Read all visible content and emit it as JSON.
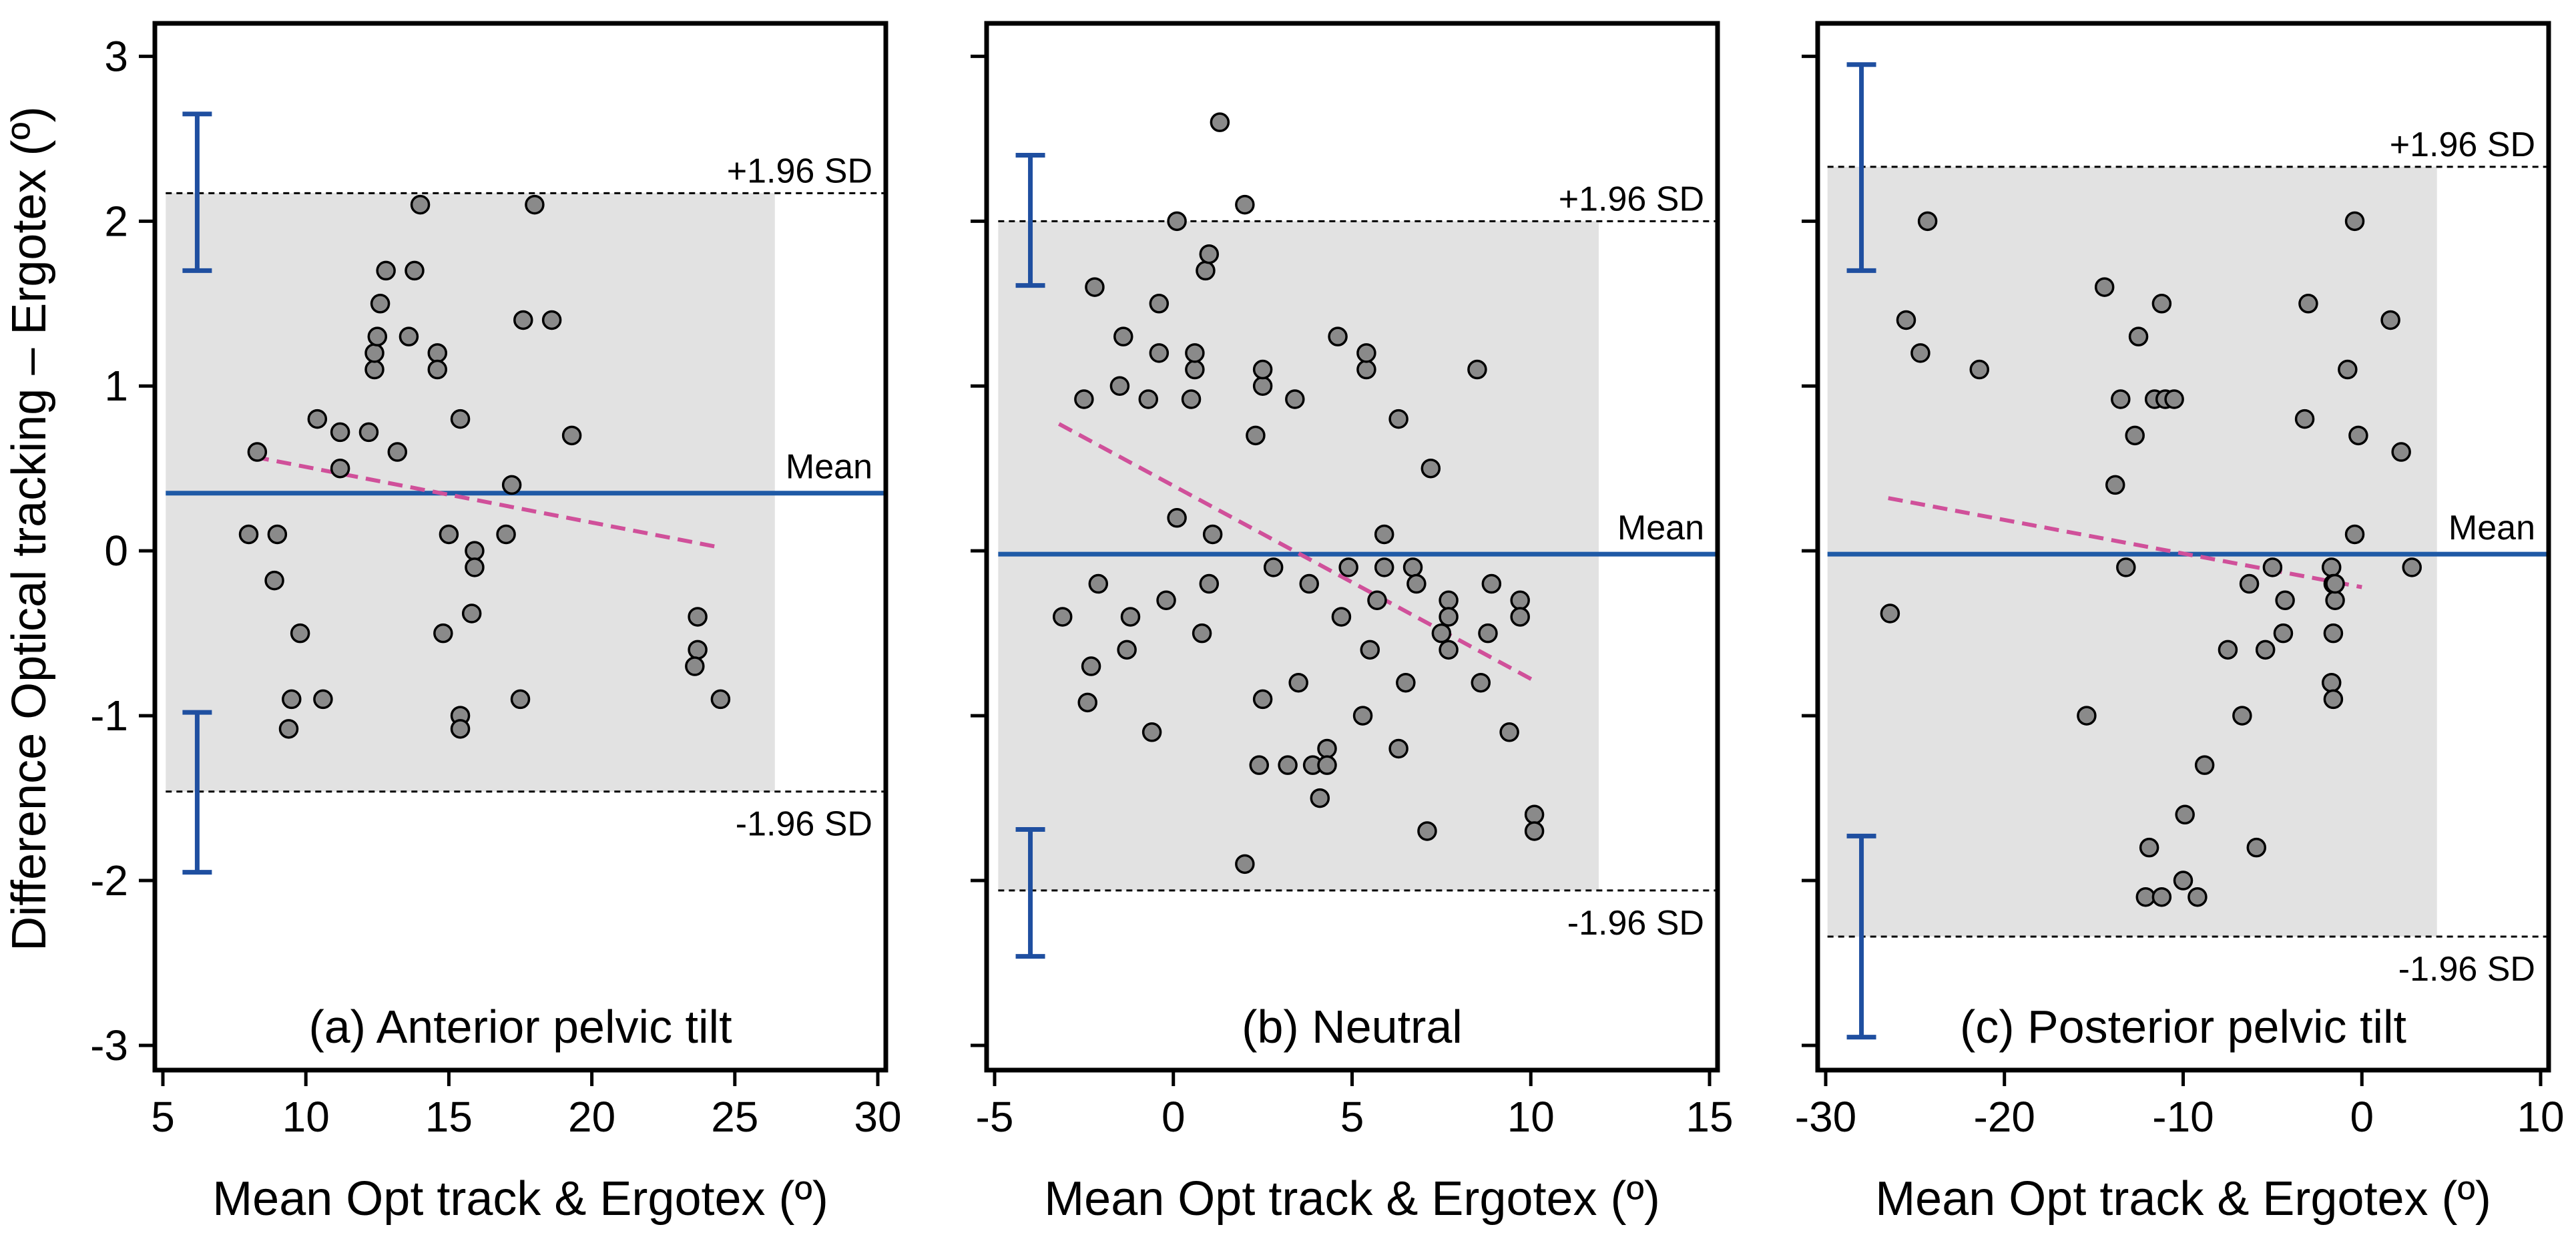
{
  "figure": {
    "ylabel": "Difference Optical tracking – Ergotex (º)",
    "colors": {
      "mean_line": "#1f5aa6",
      "ci_bar": "#1f4fa0",
      "trend_line": "#d0509a",
      "shade": "#e2e2e2",
      "point_fill": "#8a8a8a",
      "point_edge": "#000000"
    }
  },
  "chart_data": [
    {
      "type": "scatter",
      "title": "(a) Anterior pelvic tilt",
      "xlabel": "Mean Opt track & Ergotex (º)",
      "ylabel": "Difference Optical tracking – Ergotex (º)",
      "xlim": [
        5,
        30
      ],
      "ylim": [
        -3.15,
        3.2
      ],
      "xticks": [
        5,
        10,
        15,
        20,
        25,
        30
      ],
      "yticks": [
        -3,
        -2,
        -1,
        0,
        1,
        2,
        3
      ],
      "mean": 0.35,
      "upper_loa": 2.17,
      "lower_loa": -1.46,
      "mean_label": "Mean",
      "upper_label": "+1.96 SD",
      "lower_label": "-1.96 SD",
      "shade_x": [
        5.1,
        26.4
      ],
      "upper_loa_ci": [
        1.7,
        2.65
      ],
      "lower_loa_ci": [
        -1.95,
        -0.98
      ],
      "ci_x": 6.2,
      "trend": {
        "x": [
          8.2,
          24.5
        ],
        "y": [
          0.57,
          0.02
        ]
      },
      "points": [
        {
          "x": 8.3,
          "y": 0.6
        },
        {
          "x": 8.0,
          "y": 0.1
        },
        {
          "x": 8.9,
          "y": -0.18
        },
        {
          "x": 9.0,
          "y": 0.1
        },
        {
          "x": 9.8,
          "y": -0.5
        },
        {
          "x": 9.5,
          "y": -0.9
        },
        {
          "x": 9.4,
          "y": -1.08
        },
        {
          "x": 10.4,
          "y": 0.8
        },
        {
          "x": 10.6,
          "y": -0.9
        },
        {
          "x": 11.2,
          "y": 0.72
        },
        {
          "x": 11.2,
          "y": 0.5
        },
        {
          "x": 12.2,
          "y": 0.72
        },
        {
          "x": 12.4,
          "y": 1.1
        },
        {
          "x": 12.4,
          "y": 1.2
        },
        {
          "x": 12.5,
          "y": 1.3
        },
        {
          "x": 12.6,
          "y": 1.5
        },
        {
          "x": 12.8,
          "y": 1.7
        },
        {
          "x": 13.2,
          "y": 0.6
        },
        {
          "x": 13.6,
          "y": 1.3
        },
        {
          "x": 13.8,
          "y": 1.7
        },
        {
          "x": 14.0,
          "y": 2.1
        },
        {
          "x": 14.6,
          "y": 1.2
        },
        {
          "x": 14.6,
          "y": 1.1
        },
        {
          "x": 14.8,
          "y": -0.5
        },
        {
          "x": 15.0,
          "y": 0.1
        },
        {
          "x": 15.4,
          "y": 0.8
        },
        {
          "x": 15.4,
          "y": -1.0
        },
        {
          "x": 15.4,
          "y": -1.08
        },
        {
          "x": 15.8,
          "y": -0.38
        },
        {
          "x": 15.9,
          "y": 0.0
        },
        {
          "x": 15.9,
          "y": -0.1
        },
        {
          "x": 17.0,
          "y": 0.1
        },
        {
          "x": 17.2,
          "y": 0.4
        },
        {
          "x": 17.5,
          "y": -0.9
        },
        {
          "x": 17.6,
          "y": 1.4
        },
        {
          "x": 18.0,
          "y": 2.1
        },
        {
          "x": 18.6,
          "y": 1.4
        },
        {
          "x": 19.3,
          "y": 0.7
        },
        {
          "x": 23.7,
          "y": -0.4
        },
        {
          "x": 23.7,
          "y": -0.6
        },
        {
          "x": 23.6,
          "y": -0.7
        },
        {
          "x": 24.5,
          "y": -0.9
        }
      ]
    },
    {
      "type": "scatter",
      "title": "(b) Neutral",
      "xlabel": "Mean Opt track & Ergotex (º)",
      "xlim": [
        -5,
        15
      ],
      "ylim": [
        -3.15,
        3.2
      ],
      "xticks": [
        -5,
        0,
        5,
        10,
        15
      ],
      "yticks": [
        -3,
        -2,
        -1,
        0,
        1,
        2,
        3
      ],
      "mean": -0.02,
      "upper_loa": 2.0,
      "lower_loa": -2.06,
      "mean_label": "Mean",
      "upper_label": "+1.96 SD",
      "lower_label": "-1.96 SD",
      "shade_x": [
        -4.9,
        11.9
      ],
      "upper_loa_ci": [
        1.61,
        2.4
      ],
      "lower_loa_ci": [
        -2.46,
        -1.69
      ],
      "ci_x": -4.0,
      "trend": {
        "x": [
          -3.2,
          10.2
        ],
        "y": [
          0.77,
          -0.8
        ]
      },
      "points": [
        {
          "x": -3.1,
          "y": -0.4
        },
        {
          "x": -2.5,
          "y": 0.92
        },
        {
          "x": -2.3,
          "y": -0.7
        },
        {
          "x": -2.4,
          "y": -0.92
        },
        {
          "x": -2.2,
          "y": 1.6
        },
        {
          "x": -2.1,
          "y": -0.2
        },
        {
          "x": -1.5,
          "y": 1.0
        },
        {
          "x": -1.4,
          "y": 1.3
        },
        {
          "x": -1.3,
          "y": -0.6
        },
        {
          "x": -1.2,
          "y": -0.4
        },
        {
          "x": -0.7,
          "y": 0.92
        },
        {
          "x": -0.6,
          "y": -1.1
        },
        {
          "x": -0.4,
          "y": 1.2
        },
        {
          "x": -0.4,
          "y": 1.5
        },
        {
          "x": -0.2,
          "y": -0.3
        },
        {
          "x": 0.1,
          "y": 2.0
        },
        {
          "x": 0.1,
          "y": 0.2
        },
        {
          "x": 0.5,
          "y": 0.92
        },
        {
          "x": 0.6,
          "y": 1.1
        },
        {
          "x": 0.6,
          "y": 1.2
        },
        {
          "x": 0.8,
          "y": -0.5
        },
        {
          "x": 0.9,
          "y": 1.7
        },
        {
          "x": 1.0,
          "y": 1.8
        },
        {
          "x": 1.0,
          "y": -0.2
        },
        {
          "x": 1.1,
          "y": 0.1
        },
        {
          "x": 1.3,
          "y": 2.6
        },
        {
          "x": 2.0,
          "y": 2.1
        },
        {
          "x": 2.0,
          "y": -1.9
        },
        {
          "x": 2.3,
          "y": 0.7
        },
        {
          "x": 2.4,
          "y": -1.3
        },
        {
          "x": 2.5,
          "y": 1.0
        },
        {
          "x": 2.5,
          "y": 1.1
        },
        {
          "x": 2.5,
          "y": -0.9
        },
        {
          "x": 2.8,
          "y": -0.1
        },
        {
          "x": 3.2,
          "y": -1.3
        },
        {
          "x": 3.4,
          "y": 0.92
        },
        {
          "x": 3.5,
          "y": -0.8
        },
        {
          "x": 3.8,
          "y": -0.2
        },
        {
          "x": 3.9,
          "y": -1.3
        },
        {
          "x": 4.1,
          "y": -1.5
        },
        {
          "x": 4.3,
          "y": -1.2
        },
        {
          "x": 4.3,
          "y": -1.3
        },
        {
          "x": 4.6,
          "y": 1.3
        },
        {
          "x": 4.7,
          "y": -0.4
        },
        {
          "x": 4.9,
          "y": -0.1
        },
        {
          "x": 5.3,
          "y": -1.0
        },
        {
          "x": 5.4,
          "y": 1.1
        },
        {
          "x": 5.4,
          "y": 1.2
        },
        {
          "x": 5.5,
          "y": -0.6
        },
        {
          "x": 5.7,
          "y": -0.3
        },
        {
          "x": 5.9,
          "y": 0.1
        },
        {
          "x": 5.9,
          "y": -0.1
        },
        {
          "x": 6.3,
          "y": 0.8
        },
        {
          "x": 6.3,
          "y": -1.2
        },
        {
          "x": 6.5,
          "y": -0.8
        },
        {
          "x": 6.7,
          "y": -0.1
        },
        {
          "x": 6.8,
          "y": -0.2
        },
        {
          "x": 7.1,
          "y": -1.7
        },
        {
          "x": 7.2,
          "y": 0.5
        },
        {
          "x": 7.5,
          "y": -0.5
        },
        {
          "x": 7.7,
          "y": -0.3
        },
        {
          "x": 7.7,
          "y": -0.4
        },
        {
          "x": 7.7,
          "y": -0.6
        },
        {
          "x": 8.5,
          "y": 1.1
        },
        {
          "x": 8.6,
          "y": -0.8
        },
        {
          "x": 8.8,
          "y": -0.5
        },
        {
          "x": 8.9,
          "y": -0.2
        },
        {
          "x": 9.4,
          "y": -1.1
        },
        {
          "x": 9.7,
          "y": -0.3
        },
        {
          "x": 9.7,
          "y": -0.4
        },
        {
          "x": 10.1,
          "y": -1.6
        },
        {
          "x": 10.1,
          "y": -1.7
        }
      ]
    },
    {
      "type": "scatter",
      "title": "(c) Posterior pelvic tilt",
      "xlabel": "Mean Opt track & Ergotex (º)",
      "xlim": [
        -30,
        10
      ],
      "ylim": [
        -3.15,
        3.2
      ],
      "xticks": [
        -30,
        -20,
        -10,
        0,
        10
      ],
      "yticks": [
        -3,
        -2,
        -1,
        0,
        1,
        2,
        3
      ],
      "mean": -0.02,
      "upper_loa": 2.33,
      "lower_loa": -2.34,
      "mean_label": "Mean",
      "upper_label": "+1.96 SD",
      "lower_label": "-1.96 SD",
      "shade_x": [
        -29.9,
        4.2
      ],
      "upper_loa_ci": [
        1.7,
        2.95
      ],
      "lower_loa_ci": [
        -2.95,
        -1.73
      ],
      "ci_x": -28.0,
      "trend": {
        "x": [
          -26.5,
          0.0
        ],
        "y": [
          0.32,
          -0.22
        ]
      },
      "points": [
        {
          "x": -26.4,
          "y": -0.38
        },
        {
          "x": -25.5,
          "y": 1.4
        },
        {
          "x": -24.7,
          "y": 1.2
        },
        {
          "x": -24.3,
          "y": 2.0
        },
        {
          "x": -21.4,
          "y": 1.1
        },
        {
          "x": -15.4,
          "y": -1.0
        },
        {
          "x": -14.4,
          "y": 1.6
        },
        {
          "x": -13.8,
          "y": 0.4
        },
        {
          "x": -13.5,
          "y": 0.92
        },
        {
          "x": -13.2,
          "y": -0.1
        },
        {
          "x": -12.7,
          "y": 0.7
        },
        {
          "x": -12.5,
          "y": 1.3
        },
        {
          "x": -12.1,
          "y": -2.1
        },
        {
          "x": -11.9,
          "y": -1.8
        },
        {
          "x": -11.6,
          "y": 0.92
        },
        {
          "x": -11.2,
          "y": 1.5
        },
        {
          "x": -11.0,
          "y": 0.92
        },
        {
          "x": -11.2,
          "y": -2.1
        },
        {
          "x": -10.5,
          "y": 0.92
        },
        {
          "x": -10.0,
          "y": -2.0
        },
        {
          "x": -9.9,
          "y": -1.6
        },
        {
          "x": -9.2,
          "y": -2.1
        },
        {
          "x": -8.8,
          "y": -1.3
        },
        {
          "x": -7.5,
          "y": -0.6
        },
        {
          "x": -6.7,
          "y": -1.0
        },
        {
          "x": -6.3,
          "y": -0.2
        },
        {
          "x": -5.9,
          "y": -1.8
        },
        {
          "x": -5.4,
          "y": -0.6
        },
        {
          "x": -5.0,
          "y": -0.1
        },
        {
          "x": -4.4,
          "y": -0.5
        },
        {
          "x": -4.3,
          "y": -0.3
        },
        {
          "x": -3.2,
          "y": 0.8
        },
        {
          "x": -3.0,
          "y": 1.5
        },
        {
          "x": -1.7,
          "y": -0.1
        },
        {
          "x": -1.6,
          "y": -0.2
        },
        {
          "x": -1.5,
          "y": -0.3
        },
        {
          "x": -1.6,
          "y": -0.5
        },
        {
          "x": -1.7,
          "y": -0.8
        },
        {
          "x": -1.6,
          "y": -0.9
        },
        {
          "x": -1.5,
          "y": -0.2
        },
        {
          "x": -0.8,
          "y": 1.1
        },
        {
          "x": -0.4,
          "y": 2.0
        },
        {
          "x": -0.4,
          "y": 0.1
        },
        {
          "x": -0.2,
          "y": 0.7
        },
        {
          "x": 1.6,
          "y": 1.4
        },
        {
          "x": 2.2,
          "y": 0.6
        },
        {
          "x": 2.8,
          "y": -0.1
        }
      ]
    }
  ]
}
